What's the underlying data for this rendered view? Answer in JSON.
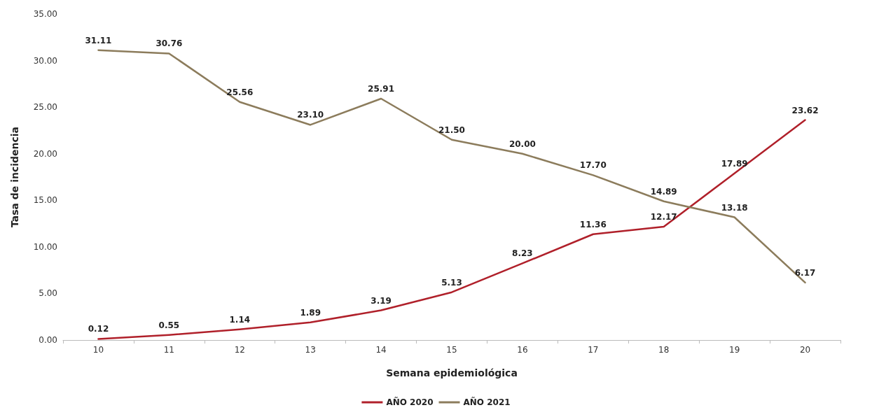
{
  "chart_data": {
    "type": "line",
    "xlabel": "Semana epidemiológica",
    "ylabel": "Tasa de incidencia",
    "categories": [
      "10",
      "11",
      "12",
      "13",
      "14",
      "15",
      "16",
      "17",
      "18",
      "19",
      "20"
    ],
    "series": [
      {
        "name": "AÑO 2020",
        "color": "#b0202a",
        "values": [
          0.12,
          0.55,
          1.14,
          1.89,
          3.19,
          5.13,
          8.23,
          11.36,
          12.17,
          17.89,
          23.62
        ],
        "value_labels": [
          "0.12",
          "0.55",
          "1.14",
          "1.89",
          "3.19",
          "5.13",
          "8.23",
          "11.36",
          "12.17",
          "17.89",
          "23.62"
        ]
      },
      {
        "name": "AÑO 2021",
        "color": "#8c7c5c",
        "values": [
          31.11,
          30.76,
          25.56,
          23.1,
          25.91,
          21.5,
          20.0,
          17.7,
          14.89,
          13.18,
          6.17
        ],
        "value_labels": [
          "31.11",
          "30.76",
          "25.56",
          "23.10",
          "25.91",
          "21.50",
          "20.00",
          "17.70",
          "14.89",
          "13.18",
          "6.17"
        ]
      }
    ],
    "ylim": [
      0,
      35
    ],
    "yticks": [
      {
        "value": 0,
        "label": "0.00"
      },
      {
        "value": 5,
        "label": "5.00"
      },
      {
        "value": 10,
        "label": "10.00"
      },
      {
        "value": 15,
        "label": "15.00"
      },
      {
        "value": 20,
        "label": "20.00"
      },
      {
        "value": 25,
        "label": "25.00"
      },
      {
        "value": 30,
        "label": "30.00"
      },
      {
        "value": 35,
        "label": "35.00"
      }
    ],
    "grid": false,
    "legend": "bottom",
    "marker": "none",
    "line_style": "solid"
  }
}
